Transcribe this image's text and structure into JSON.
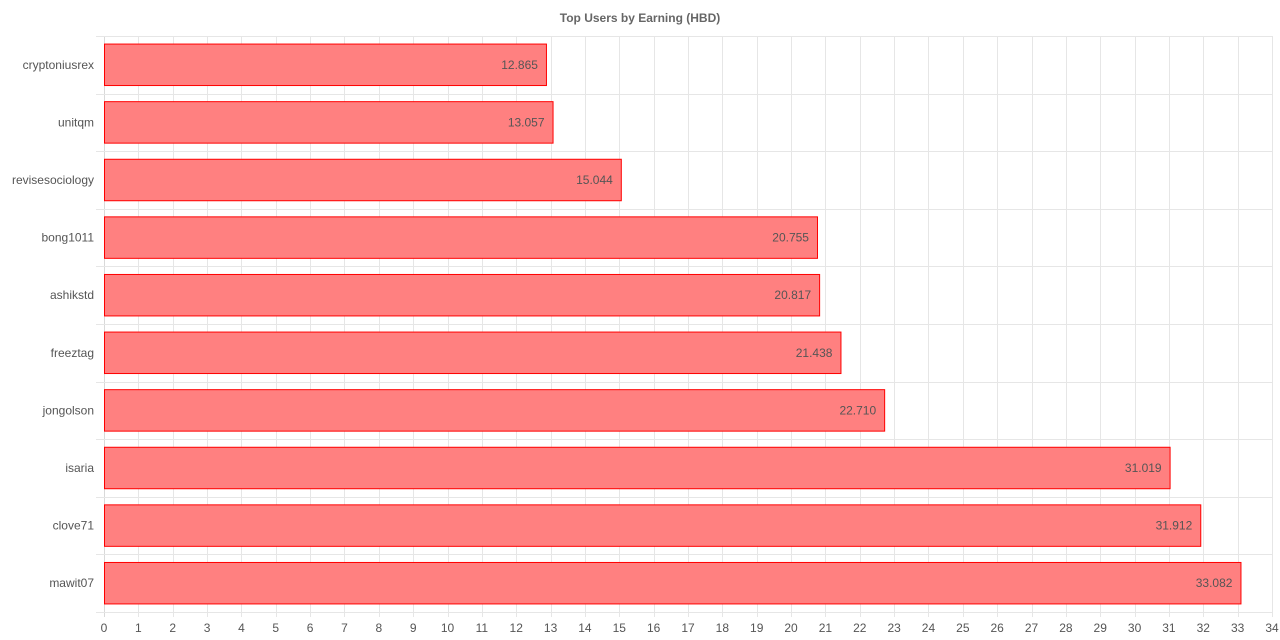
{
  "chart_data": {
    "type": "bar",
    "orientation": "horizontal",
    "title": "Top Users by Earning (HBD)",
    "xlabel": "",
    "ylabel": "",
    "categories": [
      "cryptoniusrex",
      "unitqm",
      "revisesociology",
      "bong1011",
      "ashikstd",
      "freeztag",
      "jongolson",
      "isaria",
      "clove71",
      "mawit07"
    ],
    "values": [
      12.865,
      13.057,
      15.044,
      20.755,
      20.817,
      21.438,
      22.71,
      31.019,
      31.912,
      33.082
    ],
    "value_labels": [
      "12.865",
      "13.057",
      "15.044",
      "20.755",
      "20.817",
      "21.438",
      "22.710",
      "31.019",
      "31.912",
      "33.082"
    ],
    "xlim": [
      0,
      34
    ],
    "xticks": [
      "0",
      "1",
      "2",
      "3",
      "4",
      "5",
      "6",
      "7",
      "8",
      "9",
      "10",
      "11",
      "12",
      "13",
      "14",
      "15",
      "16",
      "17",
      "18",
      "19",
      "20",
      "21",
      "22",
      "23",
      "24",
      "25",
      "26",
      "27",
      "28",
      "29",
      "30",
      "31",
      "32",
      "33",
      "34"
    ],
    "grid": true,
    "legend": "none",
    "colors": {
      "bar_fill": "#ff8080",
      "bar_stroke": "#ff0000",
      "grid": "#e6e6e6",
      "text": "#555555",
      "title": "#666666"
    }
  }
}
